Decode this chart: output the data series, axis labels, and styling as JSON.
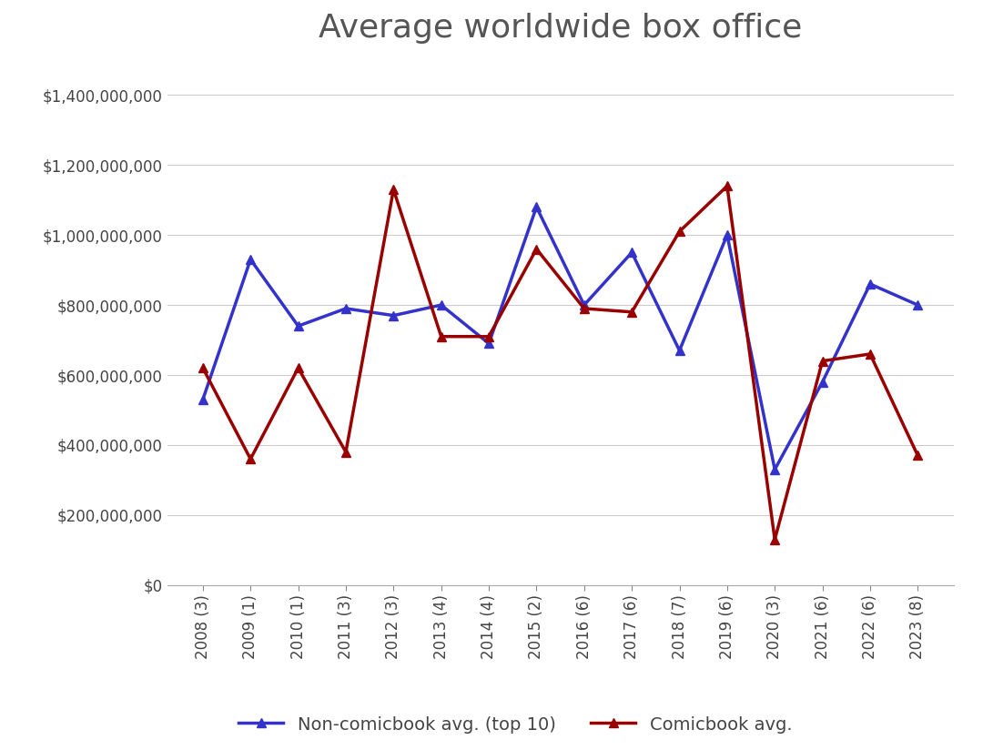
{
  "title": "Average worldwide box office",
  "categories": [
    "2008 (3)",
    "2009 (1)",
    "2010 (1)",
    "2011 (3)",
    "2012 (3)",
    "2013 (4)",
    "2014 (4)",
    "2015 (2)",
    "2016 (6)",
    "2017 (6)",
    "2018 (7)",
    "2019 (6)",
    "2020 (3)",
    "2021 (6)",
    "2022 (6)",
    "2023 (8)"
  ],
  "non_comic_values": [
    530000000,
    930000000,
    740000000,
    790000000,
    770000000,
    800000000,
    690000000,
    1080000000,
    800000000,
    950000000,
    670000000,
    1000000000,
    330000000,
    580000000,
    860000000,
    800000000
  ],
  "comic_values": [
    620000000,
    360000000,
    620000000,
    380000000,
    1130000000,
    710000000,
    710000000,
    960000000,
    790000000,
    780000000,
    1010000000,
    1140000000,
    130000000,
    640000000,
    660000000,
    370000000
  ],
  "non_comic_color": "#3333cc",
  "comic_color": "#990000",
  "ylim": [
    0,
    1500000000
  ],
  "yticks": [
    0,
    200000000,
    400000000,
    600000000,
    800000000,
    1000000000,
    1200000000,
    1400000000
  ],
  "ytick_labels": [
    "$0",
    "$200,000,000",
    "$400,000,000",
    "$600,000,000",
    "$800,000,000",
    "$1,000,000,000",
    "$1,200,000,000",
    "$1,400,000,000"
  ],
  "background_color": "#ffffff",
  "legend_labels": [
    "Non-comicbook avg. (top 10)",
    "Comicbook avg."
  ],
  "title_fontsize": 26,
  "tick_fontsize": 12,
  "legend_fontsize": 14,
  "grid_color": "#cccccc",
  "title_color": "#555555"
}
